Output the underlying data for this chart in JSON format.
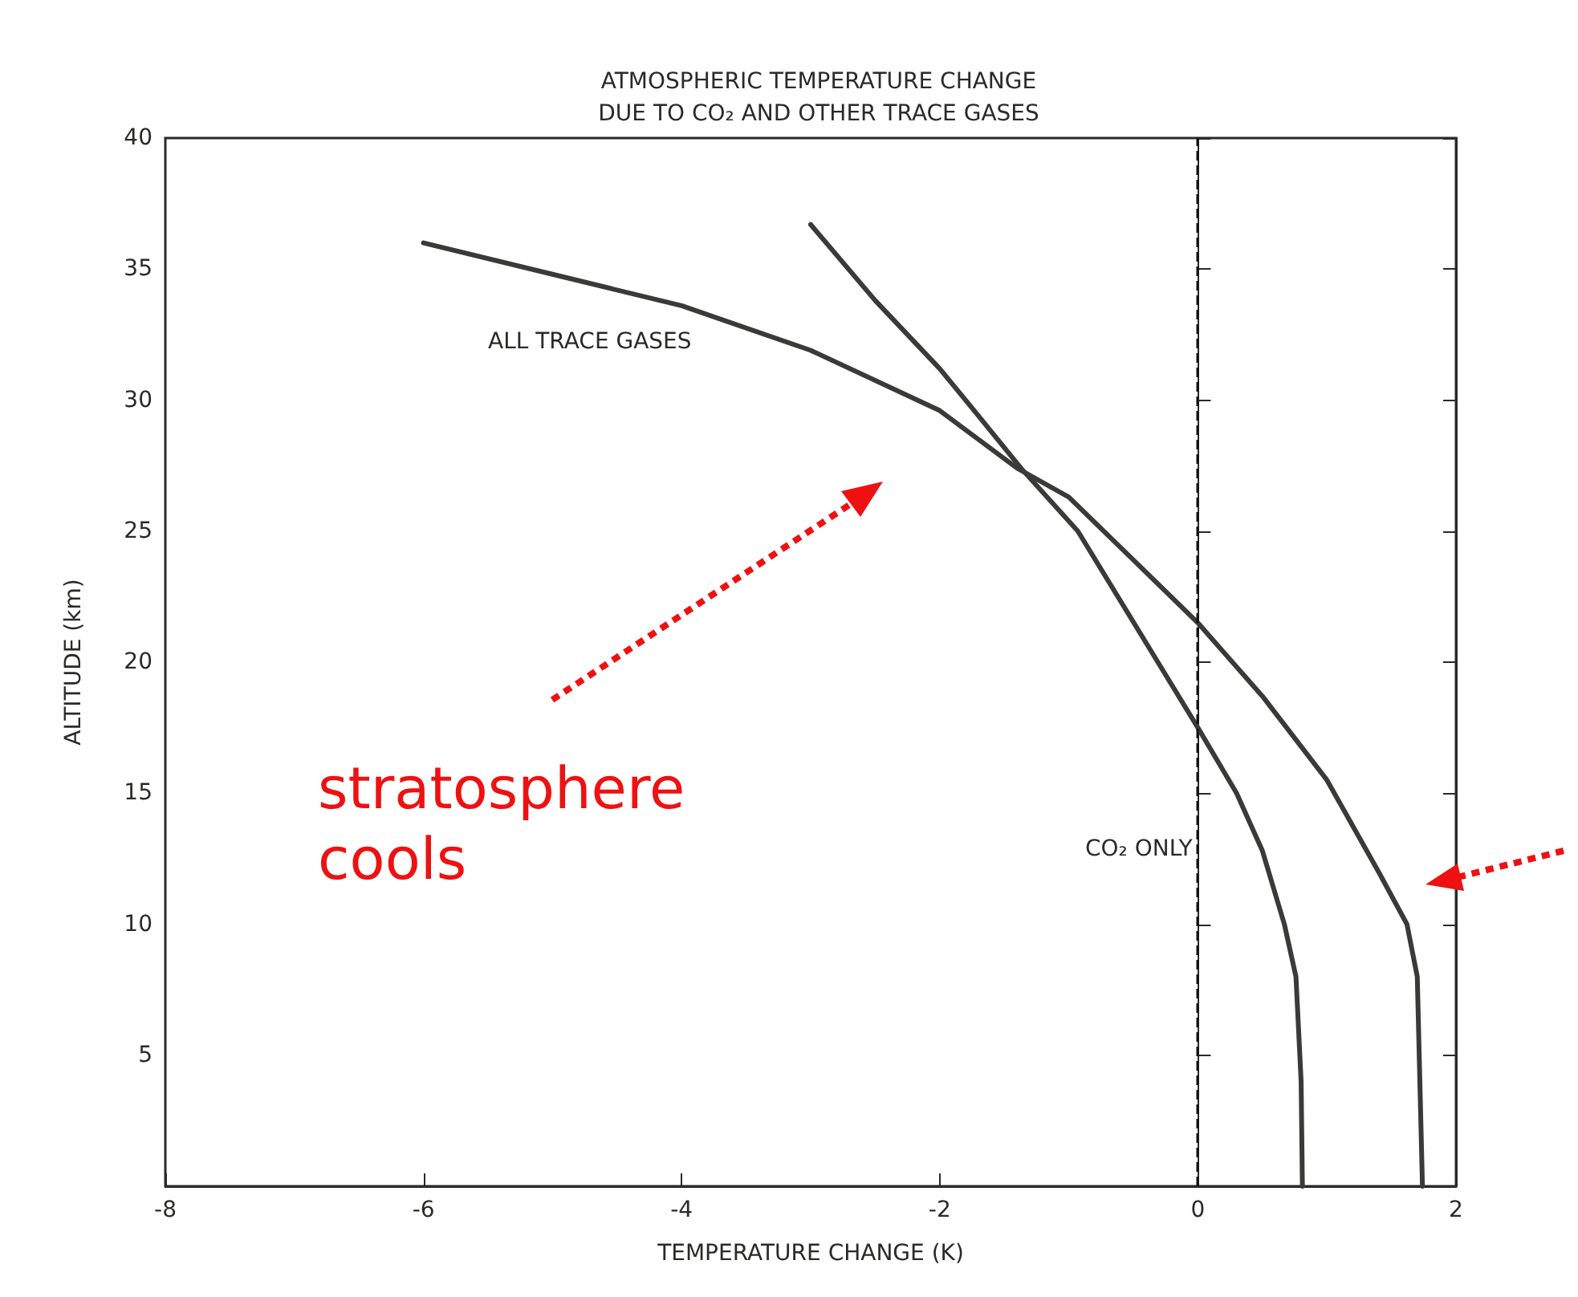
{
  "chart_data": {
    "type": "line",
    "title": "ATMOSPHERIC TEMPERATURE CHANGE\nDUE TO CO₂ AND OTHER TRACE GASES",
    "xlabel": "TEMPERATURE CHANGE (K)",
    "ylabel": "ALTITUDE (km)",
    "xlim": [
      -8,
      2
    ],
    "xticks": [
      -8,
      -6,
      -4,
      -2,
      0,
      2
    ],
    "ylim": [
      0,
      40
    ],
    "yticks": [
      {
        "value": 0,
        "label": null
      },
      5,
      10,
      15,
      20,
      25,
      30,
      35,
      40
    ],
    "grid": false,
    "legend": false,
    "marker": "none",
    "line_style": "solid",
    "series": [
      {
        "name": "ALL TRACE GASES",
        "color": "#3a3a36",
        "x": [
          -6,
          -5,
          -4,
          -3,
          -2,
          -1.4,
          -1,
          -0.5,
          0,
          0.5,
          1,
          1.4,
          1.62,
          1.7,
          1.72,
          1.74
        ],
        "values": [
          36,
          34.8,
          33.6,
          31.9,
          29.6,
          27.4,
          26.3,
          23.9,
          21.5,
          18.7,
          15.5,
          12,
          10,
          8,
          4,
          0
        ]
      },
      {
        "name": "CO₂ ONLY",
        "color": "#3a3a36",
        "x": [
          -3,
          -2.5,
          -2,
          -1.7,
          -1.37,
          -0.93,
          -0.31,
          0,
          0.3,
          0.5,
          0.67,
          0.76,
          0.8,
          0.81
        ],
        "values": [
          36.7,
          33.8,
          31.2,
          29.4,
          27.4,
          25,
          20,
          17.5,
          15,
          12.8,
          10,
          8,
          4,
          0
        ]
      }
    ],
    "ref_lines": [
      {
        "axis": "x",
        "value": 0,
        "color": "#111111",
        "line_style": "dashed"
      }
    ],
    "annotations": [
      "stratosphere cools"
    ]
  }
}
